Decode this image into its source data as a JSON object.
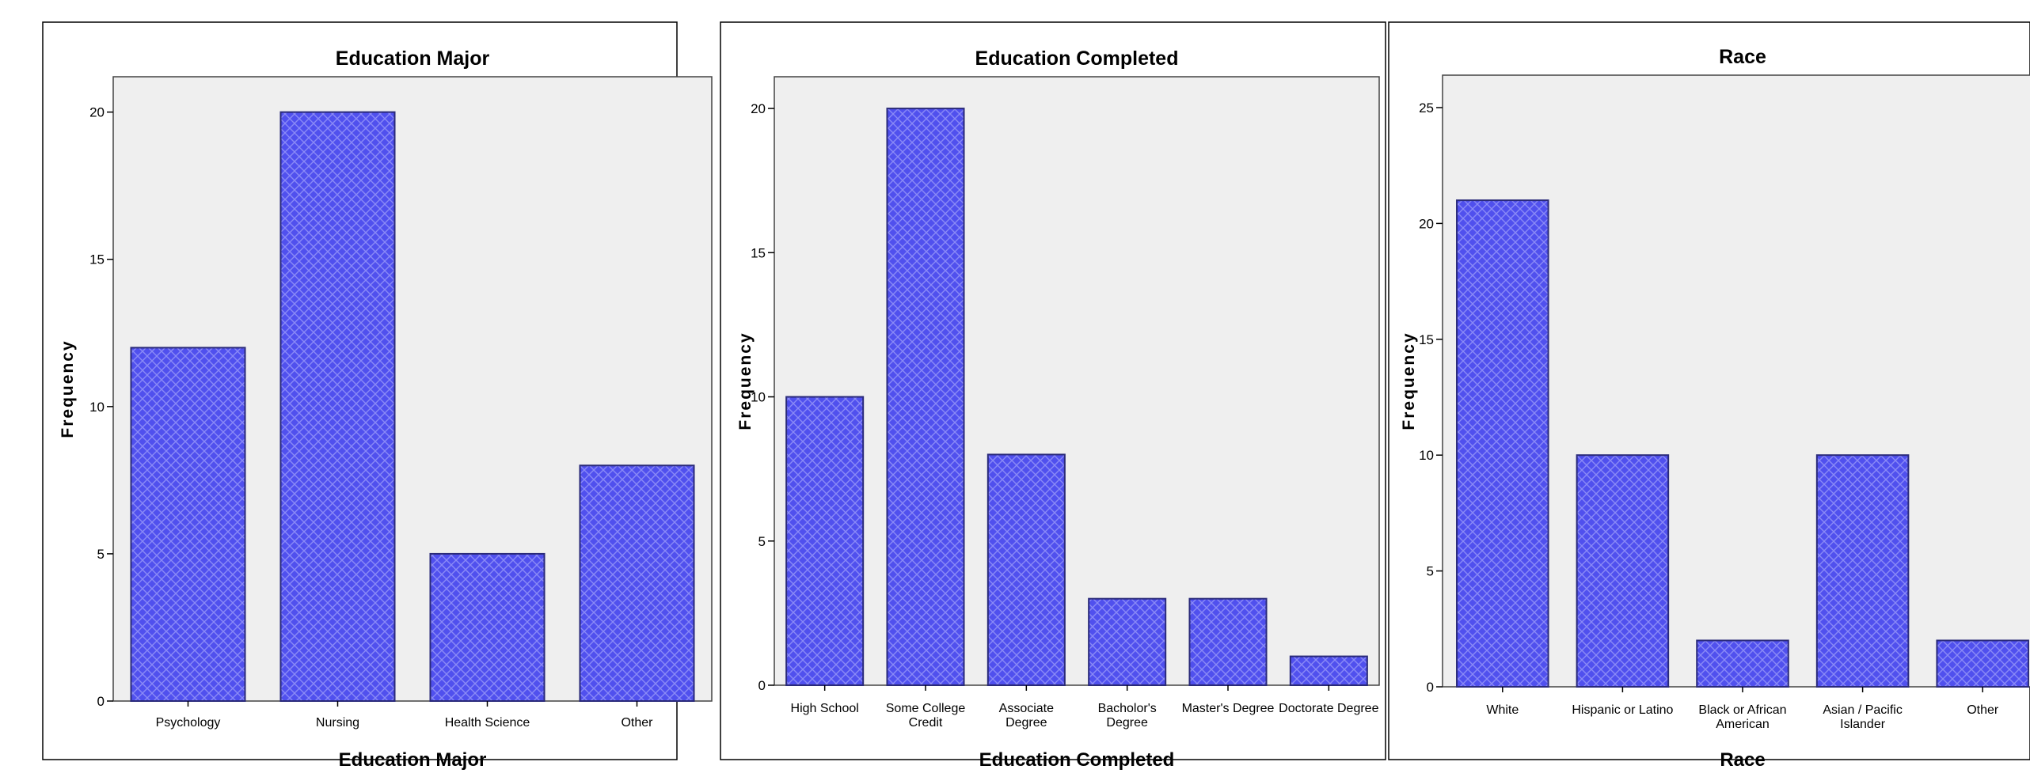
{
  "chart_data": [
    {
      "type": "bar",
      "title": "Education Major",
      "xlabel": "Education Major",
      "ylabel": "Frequency",
      "categories": [
        [
          "Psychology"
        ],
        [
          "Nursing"
        ],
        [
          "Health Science"
        ],
        [
          "Other"
        ]
      ],
      "values": [
        12,
        20,
        5,
        8
      ],
      "ylim": [
        0,
        21.2
      ],
      "yticks": [
        "0",
        "5",
        "10",
        "15",
        "20"
      ],
      "grid": false,
      "bar_color": "#5050EE"
    },
    {
      "type": "bar",
      "title": "Education Completed",
      "xlabel": "Education Completed",
      "ylabel": "Frequency",
      "categories": [
        [
          "High School"
        ],
        [
          "Some College",
          "Credit"
        ],
        [
          "Associate",
          "Degree"
        ],
        [
          "Bacholor's",
          "Degree"
        ],
        [
          "Master's Degree"
        ],
        [
          "Doctorate Degree"
        ]
      ],
      "values": [
        10,
        20,
        8,
        3,
        3,
        1
      ],
      "ylim": [
        0,
        21.1
      ],
      "yticks": [
        "0",
        "5",
        "10",
        "15",
        "20"
      ],
      "grid": false,
      "bar_color": "#5050EE"
    },
    {
      "type": "bar",
      "title": "Race",
      "xlabel": "Race",
      "ylabel": "Frequency",
      "categories": [
        [
          "White"
        ],
        [
          "Hispanic or Latino"
        ],
        [
          "Black or African",
          "American"
        ],
        [
          "Asian / Pacific",
          "Islander"
        ],
        [
          "Other"
        ]
      ],
      "values": [
        21,
        10,
        2,
        10,
        2
      ],
      "ylim": [
        0,
        26.4
      ],
      "yticks": [
        "0",
        "5",
        "10",
        "15",
        "20",
        "25"
      ],
      "grid": false,
      "bar_color": "#5050EE"
    }
  ],
  "colors": {
    "plot_background": "#EFEFEF",
    "bar_fill": "#5050EE",
    "bar_stroke": "#2A2A7A",
    "pattern": "#8A8AF6",
    "border": "#000000"
  }
}
